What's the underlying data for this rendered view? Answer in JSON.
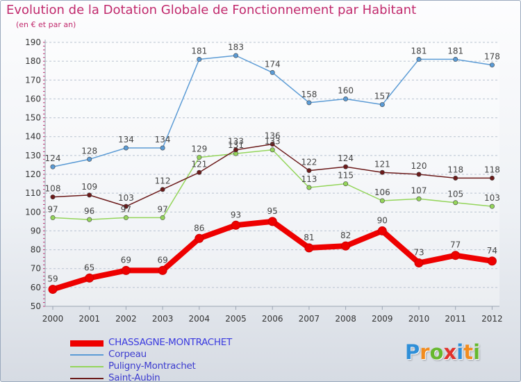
{
  "title": "Evolution de la Dotation Globale de Fonctionnement par Habitant",
  "subtitle": "(en € et par an)",
  "logo": {
    "text": "Proxiti",
    "letters": [
      "P",
      "r",
      "o",
      "x",
      "i",
      "t",
      "i"
    ],
    "letter_colors": [
      "#2f8fd8",
      "#f28c1e",
      "#66b82e",
      "#e1322b",
      "#2f8fd8",
      "#f28c1e",
      "#66b82e"
    ]
  },
  "chart_data": {
    "type": "line",
    "title": "Evolution de la Dotation Globale de Fonctionnement par Habitant",
    "subtitle": "(en € et par an)",
    "x": [
      "2000",
      "2001",
      "2002",
      "2003",
      "2004",
      "2005",
      "2006",
      "2007",
      "2008",
      "2009",
      "2010",
      "2011",
      "2012"
    ],
    "ylim": [
      50,
      190
    ],
    "yticks": [
      50,
      60,
      70,
      80,
      90,
      100,
      110,
      120,
      130,
      140,
      150,
      160,
      170,
      180,
      190
    ],
    "grid": "horizontal",
    "legend_position": "bottom-left",
    "series": [
      {
        "name": "CHASSAGNE-MONTRACHET",
        "color": "#ee0000",
        "values": [
          59,
          65,
          69,
          69,
          86,
          93,
          95,
          81,
          82,
          90,
          73,
          77,
          74
        ]
      },
      {
        "name": "Corpeau",
        "color": "#5b9bd5",
        "values": [
          124,
          128,
          134,
          134,
          181,
          183,
          174,
          158,
          160,
          157,
          181,
          181,
          178
        ]
      },
      {
        "name": "Puligny-Montrachet",
        "color": "#94d55a",
        "values": [
          97,
          96,
          97,
          97,
          129,
          131,
          133,
          113,
          115,
          106,
          107,
          105,
          103
        ]
      },
      {
        "name": "Saint-Aubin",
        "color": "#6b1a1a",
        "values": [
          108,
          109,
          103,
          112,
          121,
          133,
          136,
          122,
          124,
          121,
          120,
          118,
          118
        ]
      }
    ]
  }
}
